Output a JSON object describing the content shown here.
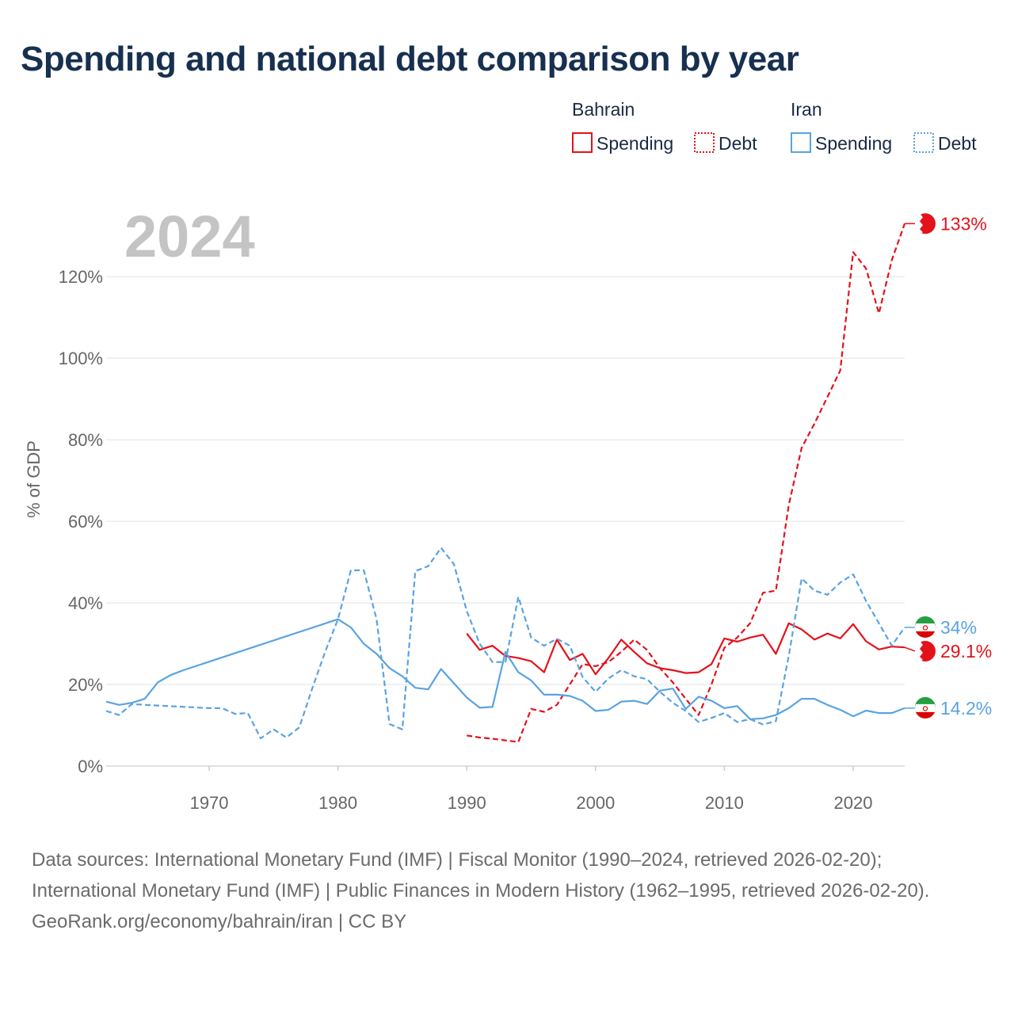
{
  "chart_data": {
    "type": "line",
    "title": "Spending and national debt comparison by year",
    "year_label": "2024",
    "ylabel": "% of GDP",
    "xlim": [
      1962,
      2024
    ],
    "ylim": [
      0,
      135
    ],
    "x_ticks": [
      1970,
      1980,
      1990,
      2000,
      2010,
      2020
    ],
    "x_tick_labels": [
      "1970",
      "1980",
      "1990",
      "2000",
      "2010",
      "2020"
    ],
    "y_ticks": [
      0,
      20,
      40,
      60,
      80,
      100,
      120
    ],
    "y_tick_labels": [
      "0%",
      "20%",
      "40%",
      "60%",
      "80%",
      "100%",
      "120%"
    ],
    "legend": {
      "position": "top-right",
      "groups": [
        {
          "country": "Bahrain",
          "spending_label": "Spending",
          "debt_label": "Debt",
          "color": "#e3121b"
        },
        {
          "country": "Iran",
          "spending_label": "Spending",
          "debt_label": "Debt",
          "color": "#5aa3e0"
        }
      ]
    },
    "series": [
      {
        "name": "Bahrain Spending",
        "country": "Bahrain",
        "kind": "spending",
        "color": "#e3121b",
        "dashed": false,
        "end_label": "29.1%",
        "x": [
          1990,
          1991,
          1992,
          1993,
          1994,
          1995,
          1996,
          1997,
          1998,
          1999,
          2000,
          2001,
          2002,
          2003,
          2004,
          2005,
          2006,
          2007,
          2008,
          2009,
          2010,
          2011,
          2012,
          2013,
          2014,
          2015,
          2016,
          2017,
          2018,
          2019,
          2020,
          2021,
          2022,
          2023,
          2024
        ],
        "values": [
          32.5,
          28.5,
          29.5,
          27,
          26.5,
          25.7,
          23,
          31,
          26,
          27.5,
          22.5,
          26.5,
          31,
          28,
          25.2,
          24,
          23.5,
          22.8,
          23,
          25,
          31.3,
          30.5,
          31.5,
          32.2,
          27.5,
          35,
          33.5,
          31,
          32.5,
          31.3,
          34.8,
          30.6,
          28.6,
          29.3,
          29.1
        ]
      },
      {
        "name": "Bahrain Debt",
        "country": "Bahrain",
        "kind": "debt",
        "color": "#e3121b",
        "dashed": true,
        "end_label": "133%",
        "x": [
          1990,
          1991,
          1992,
          1993,
          1994,
          1995,
          1996,
          1997,
          1998,
          1999,
          2000,
          2001,
          2002,
          2003,
          2004,
          2005,
          2006,
          2007,
          2008,
          2009,
          2010,
          2011,
          2012,
          2013,
          2014,
          2015,
          2016,
          2017,
          2018,
          2019,
          2020,
          2021,
          2022,
          2023,
          2024
        ],
        "values": [
          7.5,
          7,
          6.7,
          6.3,
          5.9,
          14,
          13.3,
          15,
          20,
          25,
          24.5,
          25.5,
          28,
          31,
          28.5,
          24,
          20.5,
          16.5,
          12.5,
          20,
          29,
          31.5,
          35,
          42.5,
          43,
          64,
          78,
          84,
          90.5,
          97,
          126,
          122,
          111,
          124,
          133
        ]
      },
      {
        "name": "Iran Spending",
        "country": "Iran",
        "kind": "spending",
        "color": "#5aa3e0",
        "dashed": false,
        "end_label": "14.2%",
        "x": [
          1962,
          1963,
          1964,
          1965,
          1966,
          1967,
          1968,
          1980,
          1981,
          1982,
          1983,
          1984,
          1985,
          1986,
          1987,
          1988,
          1989,
          1990,
          1991,
          1992,
          1993,
          1994,
          1995,
          1996,
          1997,
          1998,
          1999,
          2000,
          2001,
          2002,
          2003,
          2004,
          2005,
          2006,
          2007,
          2008,
          2009,
          2010,
          2011,
          2012,
          2013,
          2014,
          2015,
          2016,
          2017,
          2018,
          2019,
          2020,
          2021,
          2022,
          2023,
          2024
        ],
        "values": [
          15.8,
          15,
          15.5,
          16.5,
          20.5,
          22.3,
          23.5,
          36,
          34,
          30,
          27.5,
          24,
          22,
          19.2,
          18.8,
          23.8,
          20.3,
          16.8,
          14.3,
          14.5,
          28,
          23,
          21,
          17.5,
          17.5,
          17.2,
          16,
          13.5,
          13.8,
          15.8,
          16,
          15.2,
          18.5,
          19,
          14,
          17,
          16,
          14.2,
          14.7,
          11.5,
          11.7,
          12.5,
          14.2,
          16.5,
          16.5,
          15,
          13.8,
          12.2,
          13.6,
          13,
          13,
          14.2
        ]
      },
      {
        "name": "Iran Debt",
        "country": "Iran",
        "kind": "debt",
        "color": "#5aa3e0",
        "dashed": true,
        "end_label": "34%",
        "x": [
          1962,
          1963,
          1964,
          1965,
          1970,
          1971,
          1972,
          1973,
          1974,
          1975,
          1976,
          1977,
          1978,
          1979,
          1980,
          1981,
          1982,
          1983,
          1984,
          1985,
          1986,
          1987,
          1988,
          1989,
          1990,
          1991,
          1992,
          1993,
          1994,
          1995,
          1996,
          1997,
          1998,
          1999,
          2000,
          2001,
          2002,
          2003,
          2004,
          2005,
          2006,
          2007,
          2008,
          2009,
          2010,
          2011,
          2012,
          2013,
          2014,
          2015,
          2016,
          2017,
          2018,
          2019,
          2020,
          2021,
          2022,
          2023,
          2024
        ],
        "values": [
          13.5,
          12.5,
          15.2,
          15,
          14.2,
          14.2,
          12.8,
          13,
          6.8,
          9,
          7,
          9.5,
          19,
          28,
          36,
          48,
          48,
          36,
          10.3,
          9,
          47.8,
          49,
          53.5,
          49.5,
          38,
          30,
          25.5,
          25.5,
          41.5,
          31.5,
          29.5,
          31.2,
          29.5,
          21.8,
          18.2,
          21.5,
          23.5,
          22,
          21.3,
          18.2,
          15.5,
          13.5,
          10.8,
          11.8,
          13,
          10.8,
          11.5,
          10.2,
          11,
          27,
          46,
          43,
          42,
          45,
          47,
          40.5,
          35,
          29.5,
          34
        ]
      }
    ]
  }
}
